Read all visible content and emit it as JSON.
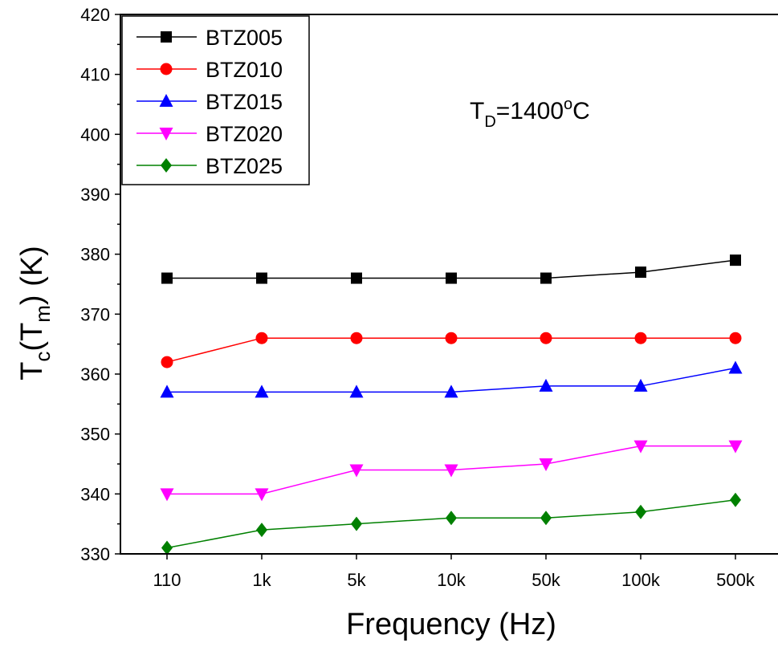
{
  "chart_data": {
    "type": "line",
    "categories": [
      "110",
      "1k",
      "5k",
      "10k",
      "50k",
      "100k",
      "500k"
    ],
    "xlabel": "Frequency (Hz)",
    "ylabel": "Tc(Tm) (K)",
    "ylabel_parts": {
      "main": "T",
      "sub1": "c",
      "mid": "(T",
      "sub2": "m",
      "tail": ") (K)"
    },
    "ylim": [
      330,
      420
    ],
    "yticks": [
      "330",
      "340",
      "350",
      "360",
      "370",
      "380",
      "390",
      "400",
      "410",
      "420"
    ],
    "grid": false,
    "legend_position": "top-left",
    "annotation": {
      "text": "TD=1400°C",
      "main": "T",
      "sub": "D",
      "mid": "=1400",
      "sup": "o",
      "tail": "C"
    },
    "series": [
      {
        "name": "BTZ005",
        "color": "#000000",
        "marker": "square",
        "values": [
          376,
          376,
          376,
          376,
          376,
          377,
          379
        ]
      },
      {
        "name": "BTZ010",
        "color": "#ff0000",
        "marker": "circle",
        "values": [
          362,
          366,
          366,
          366,
          366,
          366,
          366
        ]
      },
      {
        "name": "BTZ015",
        "color": "#0000ff",
        "marker": "triangle-up",
        "values": [
          357,
          357,
          357,
          357,
          358,
          358,
          361
        ]
      },
      {
        "name": "BTZ020",
        "color": "#ff00ff",
        "marker": "triangle-down",
        "values": [
          340,
          340,
          344,
          344,
          345,
          348,
          348
        ]
      },
      {
        "name": "BTZ025",
        "color": "#008000",
        "marker": "diamond",
        "values": [
          331,
          334,
          335,
          336,
          336,
          337,
          339
        ]
      }
    ]
  }
}
